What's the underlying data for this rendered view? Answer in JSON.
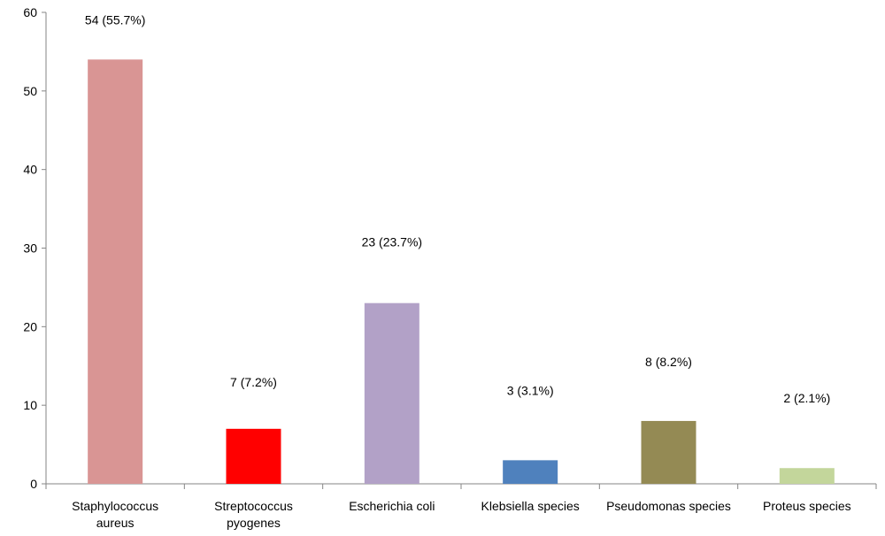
{
  "chart_data": {
    "type": "bar",
    "title": "",
    "xlabel": "",
    "ylabel": "",
    "ylim": [
      0,
      60
    ],
    "yticks": [
      0,
      10,
      20,
      30,
      40,
      50,
      60
    ],
    "grid": false,
    "legend": "none",
    "categories": [
      [
        "Staphylococcus",
        "aureus"
      ],
      [
        "Streptococcus",
        "pyogenes"
      ],
      [
        "Escherichia coli"
      ],
      [
        "Klebsiella species"
      ],
      [
        "Pseudomonas species"
      ],
      [
        "Proteus species"
      ]
    ],
    "values": [
      54,
      7,
      23,
      3,
      8,
      2
    ],
    "data_labels": [
      "54  (55.7%)",
      "7 (7.2%)",
      "23 (23.7%)",
      "3 (3.1%)",
      "8 (8.2%)",
      "2 (2.1%)"
    ],
    "colors": [
      "#D99594",
      "#FF0000",
      "#B2A1C7",
      "#4F81BD",
      "#948A54",
      "#C3D69B"
    ]
  }
}
